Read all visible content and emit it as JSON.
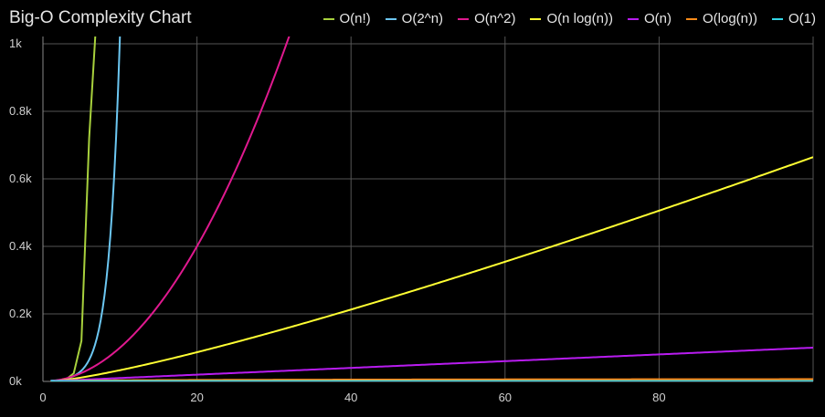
{
  "chart_data": {
    "type": "line",
    "title": "Big-O Complexity Chart",
    "xlabel": "",
    "ylabel": "",
    "xlim": [
      0,
      100
    ],
    "ylim": [
      0,
      1000
    ],
    "x_ticks": [
      0,
      20,
      40,
      60,
      80
    ],
    "x_tick_labels": [
      "0",
      "20",
      "40",
      "60",
      "80"
    ],
    "y_ticks": [
      0,
      200,
      400,
      600,
      800,
      1000
    ],
    "y_tick_labels": [
      "0k",
      "0.2k",
      "0.4k",
      "0.6k",
      "0.8k",
      "1k"
    ],
    "grid": true,
    "legend_position": "top-right",
    "series": [
      {
        "name": "O(n!)",
        "color": "#a8d13d",
        "formula": "factorial",
        "x": [
          1,
          2,
          3,
          4,
          5,
          6
        ],
        "y": [
          1,
          2,
          6,
          24,
          120,
          720
        ]
      },
      {
        "name": "O(2^n)",
        "color": "#6cc7f2",
        "formula": "exp2",
        "x": [
          1,
          2,
          3,
          4,
          5,
          6,
          7,
          8,
          9,
          10
        ],
        "y": [
          2,
          4,
          8,
          16,
          32,
          64,
          128,
          256,
          512,
          1024
        ]
      },
      {
        "name": "O(n^2)",
        "color": "#e0198f",
        "formula": "square",
        "x": [
          1,
          5,
          10,
          15,
          20,
          25,
          30,
          32
        ],
        "y": [
          1,
          25,
          100,
          225,
          400,
          625,
          900,
          1024
        ]
      },
      {
        "name": "O(n log(n))",
        "color": "#ffff33",
        "formula": "nlogn",
        "x": [
          1,
          10,
          20,
          40,
          60,
          80,
          100
        ],
        "y": [
          0,
          33,
          86,
          213,
          354,
          506,
          664
        ]
      },
      {
        "name": "O(n)",
        "color": "#b81cf0",
        "formula": "linear",
        "x": [
          1,
          20,
          40,
          60,
          80,
          100
        ],
        "y": [
          1,
          20,
          40,
          60,
          80,
          100
        ]
      },
      {
        "name": "O(log(n))",
        "color": "#ff8c1a",
        "formula": "log",
        "x": [
          1,
          10,
          20,
          40,
          60,
          80,
          100
        ],
        "y": [
          0,
          3.3,
          4.3,
          5.3,
          5.9,
          6.3,
          6.6
        ]
      },
      {
        "name": "O(1)",
        "color": "#33d6e6",
        "formula": "constant",
        "x": [
          1,
          100
        ],
        "y": [
          1,
          1
        ]
      }
    ]
  }
}
